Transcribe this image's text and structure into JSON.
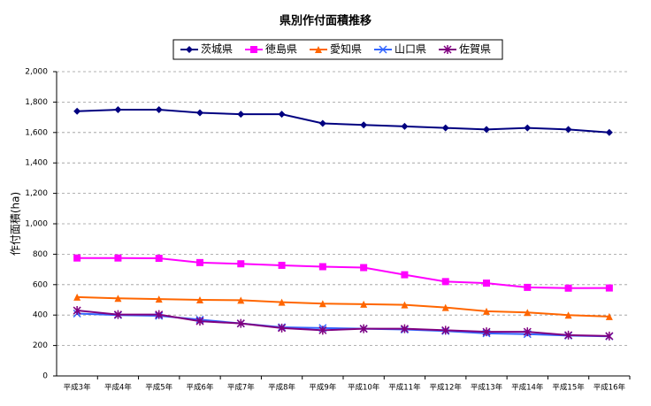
{
  "chart_data": {
    "type": "line",
    "title": "県別作付面積推移",
    "y_label": "作付面積(ha)",
    "categories": [
      "平成3年",
      "平成4年",
      "平成5年",
      "平成6年",
      "平成7年",
      "平成8年",
      "平成9年",
      "平成10年",
      "平成11年",
      "平成12年",
      "平成13年",
      "平成14年",
      "平成15年",
      "平成16年"
    ],
    "series": [
      {
        "name": "茨城県",
        "color": "#000080",
        "marker": "diamond",
        "values": [
          1740,
          1750,
          1750,
          1730,
          1720,
          1720,
          1660,
          1650,
          1640,
          1630,
          1620,
          1630,
          1620,
          1600
        ]
      },
      {
        "name": "徳島県",
        "color": "#ff00ff",
        "marker": "square",
        "values": [
          775,
          775,
          773,
          745,
          737,
          727,
          718,
          712,
          665,
          620,
          610,
          582,
          577,
          578
        ]
      },
      {
        "name": "愛知県",
        "color": "#ff6600",
        "marker": "triangle",
        "values": [
          518,
          510,
          505,
          500,
          498,
          485,
          475,
          472,
          467,
          450,
          425,
          417,
          400,
          390
        ]
      },
      {
        "name": "山口県",
        "color": "#3366ff",
        "marker": "x",
        "values": [
          410,
          400,
          395,
          370,
          345,
          320,
          315,
          310,
          305,
          295,
          280,
          275,
          265,
          260
        ]
      },
      {
        "name": "佐賀県",
        "color": "#800080",
        "marker": "star",
        "values": [
          430,
          403,
          403,
          360,
          345,
          315,
          300,
          310,
          310,
          300,
          290,
          290,
          268,
          262
        ]
      }
    ],
    "ylim": [
      0,
      2000
    ],
    "yticks": [
      0,
      200,
      400,
      600,
      800,
      {
        "value": 1000,
        "label": "1,000"
      },
      {
        "value": 1200,
        "label": "1,200"
      },
      {
        "value": 1400,
        "label": "1,400"
      },
      {
        "value": 1600,
        "label": "1,600"
      },
      {
        "value": 1800,
        "label": "1,800"
      },
      {
        "value": 2000,
        "label": "2,000"
      }
    ],
    "grid": true,
    "legend": "top"
  }
}
